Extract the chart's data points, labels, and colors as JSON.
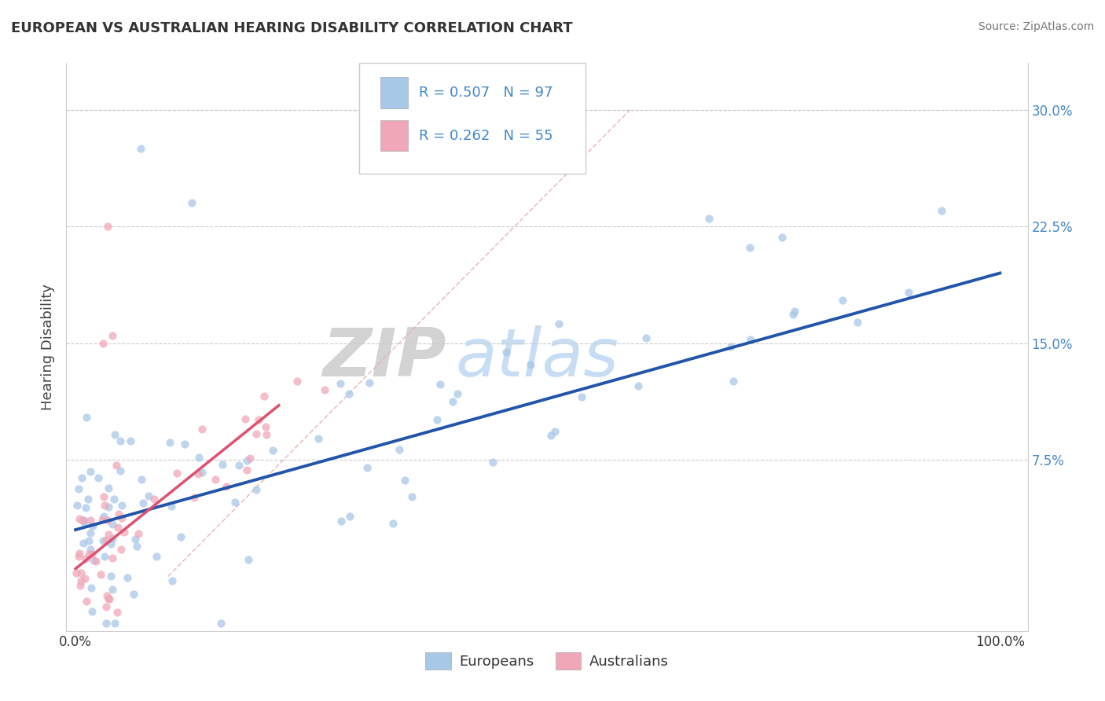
{
  "title": "EUROPEAN VS AUSTRALIAN HEARING DISABILITY CORRELATION CHART",
  "source": "Source: ZipAtlas.com",
  "ylabel": "Hearing Disability",
  "ytick_labels": [
    "7.5%",
    "15.0%",
    "22.5%",
    "30.0%"
  ],
  "ytick_values": [
    7.5,
    15.0,
    22.5,
    30.0
  ],
  "xlim": [
    -1.0,
    103.0
  ],
  "ylim": [
    -3.5,
    33.0
  ],
  "european_R": 0.507,
  "european_N": 97,
  "australian_R": 0.262,
  "australian_N": 55,
  "european_color": "#A8C8E8",
  "australian_color": "#F0A8B8",
  "european_line_color": "#2255AA",
  "australian_line_color": "#E05070",
  "diag_line_color": "#E8B0B0",
  "title_color": "#333333",
  "right_axis_color": "#4488CC",
  "background_color": "#FFFFFF",
  "grid_color": "#CCCCCC",
  "watermark_ZIP_color": "#BBBBBB",
  "watermark_atlas_color": "#AACCEE",
  "eur_line_x0": 0,
  "eur_line_x1": 100,
  "eur_line_y0": 3.0,
  "eur_line_y1": 19.5,
  "aus_line_x0": 0,
  "aus_line_x1": 22,
  "aus_line_y0": 0.5,
  "aus_line_y1": 11.0,
  "diag_line_x0": 10,
  "diag_line_x1": 60,
  "diag_line_y0": 0,
  "diag_line_y1": 30
}
